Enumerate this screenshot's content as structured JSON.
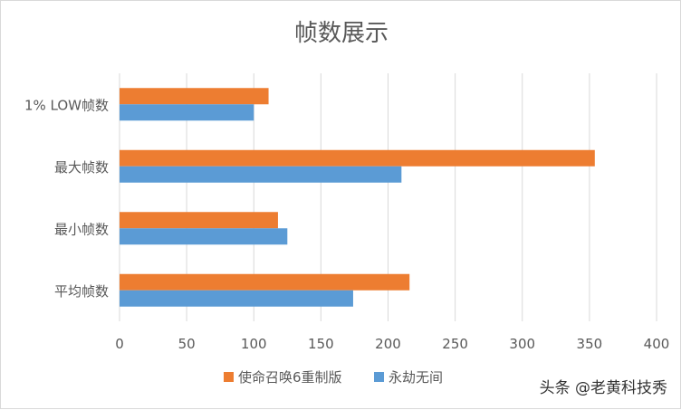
{
  "chart_data": {
    "type": "bar",
    "orientation": "horizontal",
    "title": "帧数展示",
    "categories": [
      "1% LOW帧数",
      "最大帧数",
      "最小帧数",
      "平均帧数"
    ],
    "series": [
      {
        "name": "使命召唤6重制版",
        "color": "#ed7d31",
        "values": [
          111,
          354,
          118,
          216
        ]
      },
      {
        "name": "永劫无间",
        "color": "#5b9bd5",
        "values": [
          100,
          210,
          125,
          174
        ]
      }
    ],
    "xlim": [
      0,
      400
    ],
    "xticks": [
      0,
      50,
      100,
      150,
      200,
      250,
      300,
      350,
      400
    ],
    "xlabel": "",
    "ylabel": "",
    "grid": true,
    "legend_position": "bottom"
  },
  "watermark": "头条 @老黄科技秀"
}
